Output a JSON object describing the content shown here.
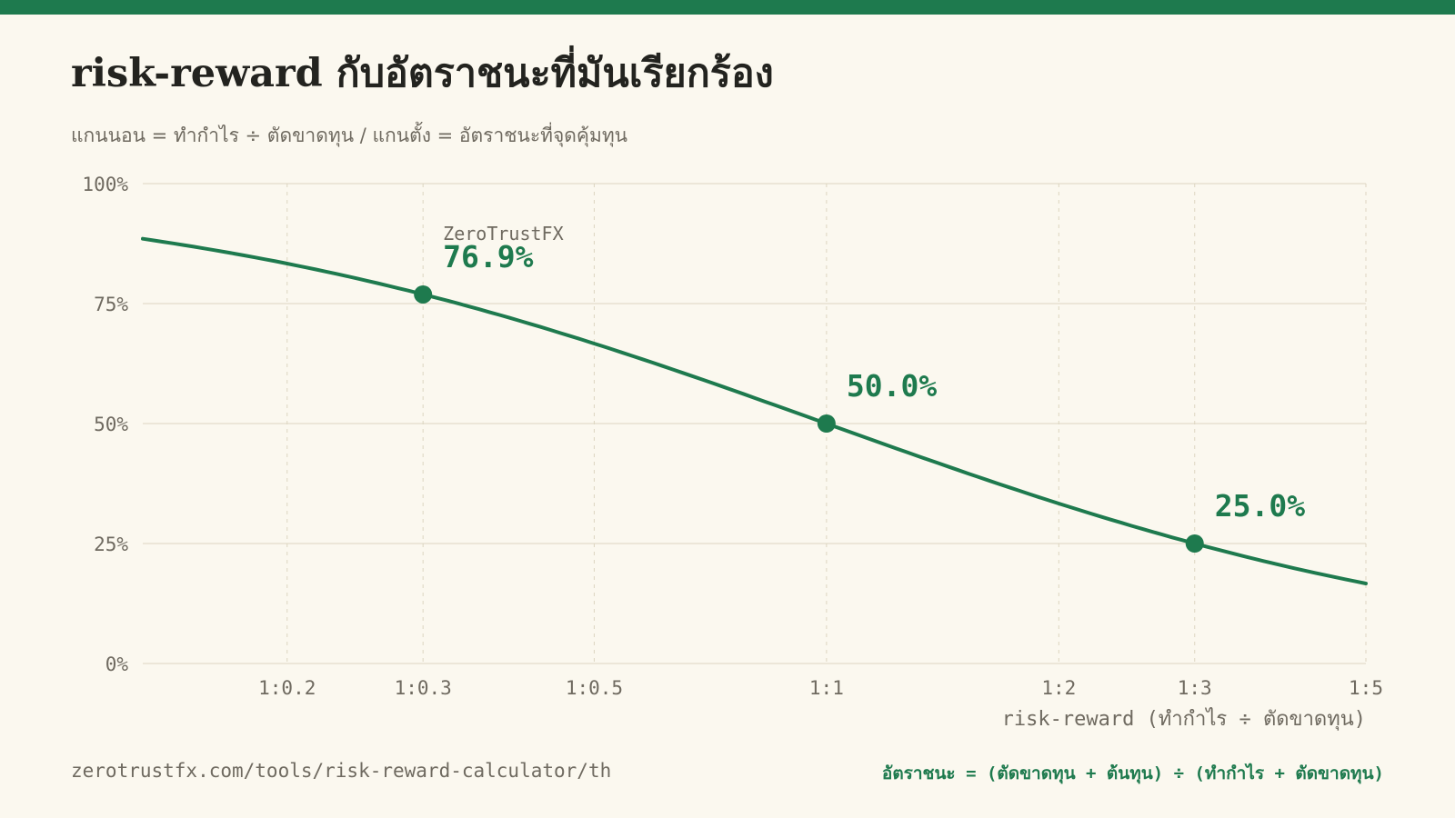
{
  "page": {
    "title": "risk-reward กับอัตราชนะที่มันเรียกร้อง",
    "subtitle": "แกนนอน = ทำกำไร ÷ ตัดขาดทุน / แกนตั้ง = อัตราชนะที่จุดคุ้มทุน",
    "footer_url": "zerotrustfx.com/tools/risk-reward-calculator/th",
    "footer_formula": "อัตราชนะ = (ตัดขาดทุน + ต้นทุน) ÷ (ทำกำไร + ตัดขาดทุน)",
    "accent_color": "#1e7a4e"
  },
  "chart_data": {
    "type": "line",
    "title": "risk-reward กับอัตราชนะที่มันเรียกร้อง",
    "xlabel": "risk-reward (ทำกำไร ÷ ตัดขาดทุน)",
    "ylabel": "",
    "x_scale": "log",
    "xlim": [
      0.13,
      5
    ],
    "ylim": [
      0,
      100
    ],
    "x_ticks": [
      {
        "value": 0.2,
        "label": "1:0.2"
      },
      {
        "value": 0.3,
        "label": "1:0.3"
      },
      {
        "value": 0.5,
        "label": "1:0.5"
      },
      {
        "value": 1,
        "label": "1:1"
      },
      {
        "value": 2,
        "label": "1:2"
      },
      {
        "value": 3,
        "label": "1:3"
      },
      {
        "value": 5,
        "label": "1:5"
      }
    ],
    "y_ticks": [
      {
        "value": 0,
        "label": "0%"
      },
      {
        "value": 25,
        "label": "25%"
      },
      {
        "value": 50,
        "label": "50%"
      },
      {
        "value": 75,
        "label": "75%"
      },
      {
        "value": 100,
        "label": "100%"
      }
    ],
    "grid": true,
    "series": [
      {
        "name": "",
        "color": "#1e7a4e",
        "formula": "100 / (1 + x)",
        "points": [
          [
            0.13,
            88.5
          ],
          [
            0.15,
            87.0
          ],
          [
            0.2,
            83.3
          ],
          [
            0.25,
            80.0
          ],
          [
            0.3,
            76.9
          ],
          [
            0.4,
            71.4
          ],
          [
            0.5,
            66.7
          ],
          [
            0.6,
            62.5
          ],
          [
            0.75,
            57.1
          ],
          [
            1,
            50.0
          ],
          [
            1.25,
            44.4
          ],
          [
            1.5,
            40.0
          ],
          [
            2,
            33.3
          ],
          [
            2.5,
            28.6
          ],
          [
            3,
            25.0
          ],
          [
            4,
            20.0
          ],
          [
            5,
            16.7
          ]
        ]
      }
    ],
    "annotations": [
      {
        "x": 0.3,
        "y": 76.9,
        "label": "76.9%",
        "sublabel": "ZeroTrustFX"
      },
      {
        "x": 1,
        "y": 50.0,
        "label": "50.0%",
        "sublabel": ""
      },
      {
        "x": 3,
        "y": 25.0,
        "label": "25.0%",
        "sublabel": ""
      }
    ]
  }
}
